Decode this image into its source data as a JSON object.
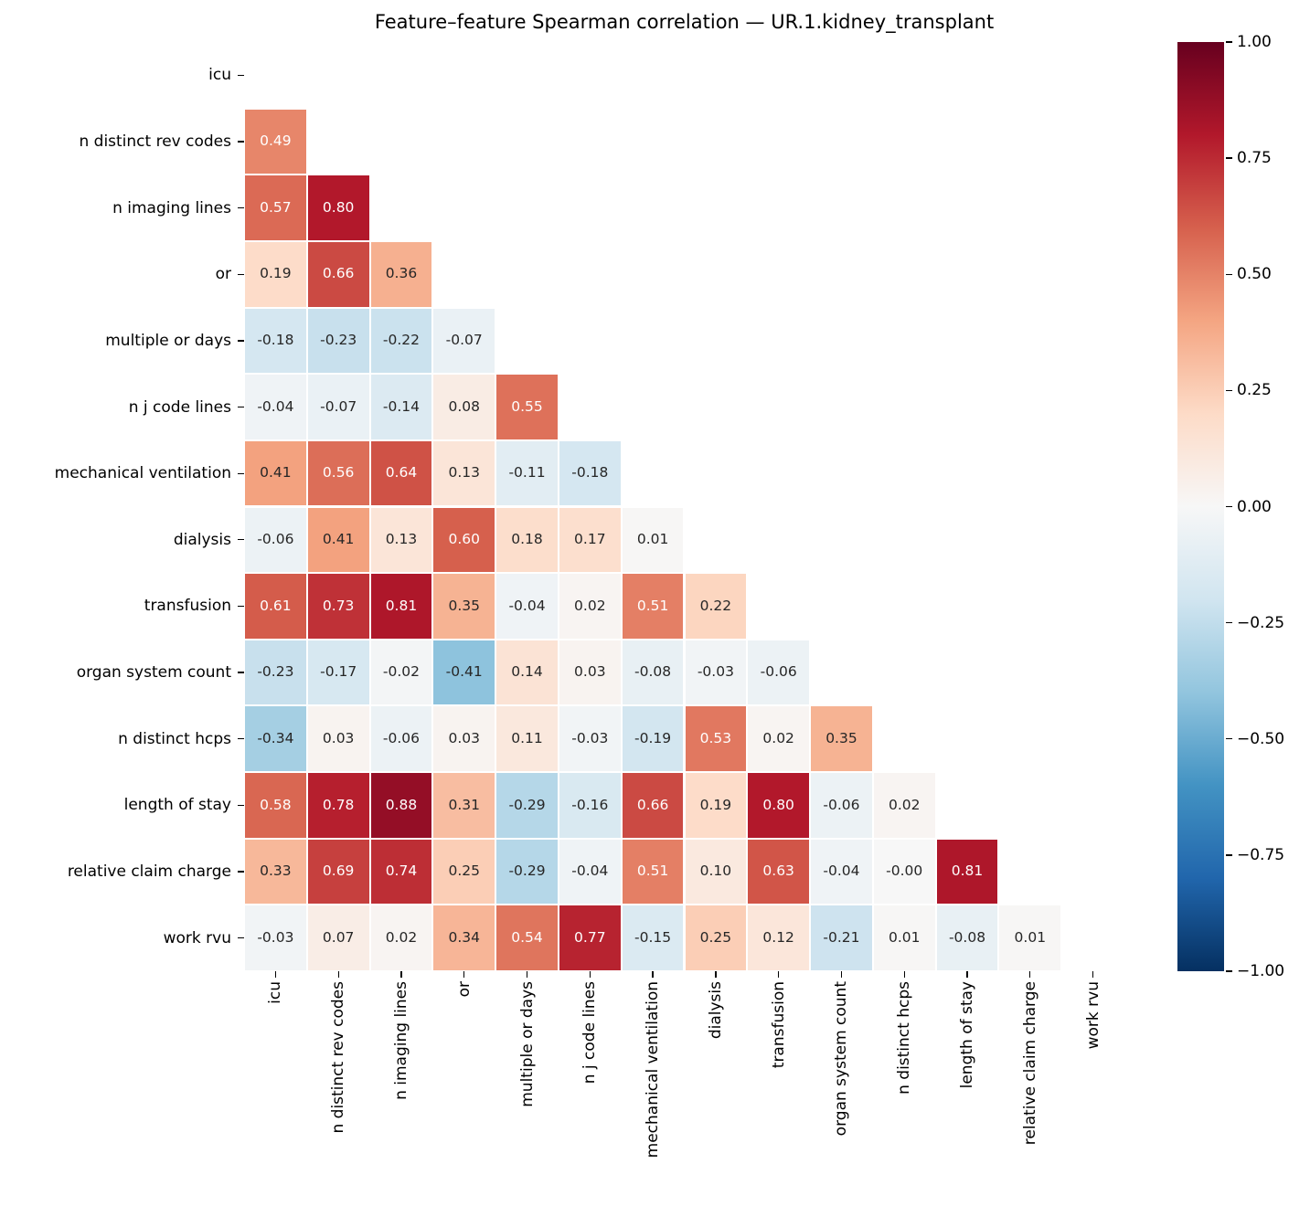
{
  "title": "Feature–feature Spearman correlation — UR.1.kidney_transplant",
  "chart_data": {
    "type": "heatmap",
    "subtype": "correlation-matrix-lower-triangle",
    "title": "Feature–feature Spearman correlation — UR.1.kidney_transplant",
    "categories": [
      "icu",
      "n distinct rev codes",
      "n imaging lines",
      "or",
      "multiple or days",
      "n j code lines",
      "mechanical ventilation",
      "dialysis",
      "transfusion",
      "organ system count",
      "n distinct hcps",
      "length of stay",
      "relative claim charge",
      "work rvu"
    ],
    "matrix_lower_triangle": [
      [],
      [
        "0.49"
      ],
      [
        "0.57",
        "0.80"
      ],
      [
        "0.19",
        "0.66",
        "0.36"
      ],
      [
        "-0.18",
        "-0.23",
        "-0.22",
        "-0.07"
      ],
      [
        "-0.04",
        "-0.07",
        "-0.14",
        "0.08",
        "0.55"
      ],
      [
        "0.41",
        "0.56",
        "0.64",
        "0.13",
        "-0.11",
        "-0.18"
      ],
      [
        "-0.06",
        "0.41",
        "0.13",
        "0.60",
        "0.18",
        "0.17",
        "0.01"
      ],
      [
        "0.61",
        "0.73",
        "0.81",
        "0.35",
        "-0.04",
        "0.02",
        "0.51",
        "0.22"
      ],
      [
        "-0.23",
        "-0.17",
        "-0.02",
        "-0.41",
        "0.14",
        "0.03",
        "-0.08",
        "-0.03",
        "-0.06"
      ],
      [
        "-0.34",
        "0.03",
        "-0.06",
        "0.03",
        "0.11",
        "-0.03",
        "-0.19",
        "0.53",
        "0.02",
        "0.35"
      ],
      [
        "0.58",
        "0.78",
        "0.88",
        "0.31",
        "-0.29",
        "-0.16",
        "0.66",
        "0.19",
        "0.80",
        "-0.06",
        "0.02"
      ],
      [
        "0.33",
        "0.69",
        "0.74",
        "0.25",
        "-0.29",
        "-0.04",
        "0.51",
        "0.10",
        "0.63",
        "-0.04",
        "-0.00",
        "0.81"
      ],
      [
        "-0.03",
        "0.07",
        "0.02",
        "0.34",
        "0.54",
        "0.77",
        "-0.15",
        "0.25",
        "0.12",
        "-0.21",
        "0.01",
        "-0.08",
        "0.01"
      ]
    ],
    "masked_region": "upper triangle including diagonal",
    "colormap": "RdBu_r",
    "vmin": -1,
    "vmax": 1,
    "colorbar_ticks": [
      "1.00",
      "0.75",
      "0.50",
      "0.25",
      "0.00",
      "−0.25",
      "−0.50",
      "−0.75",
      "−1.00"
    ],
    "colormap_stops_hex": [
      "#053061",
      "#2166ac",
      "#4393c3",
      "#92c5de",
      "#d1e5f0",
      "#f7f7f7",
      "#fddbc7",
      "#f4a582",
      "#d6604d",
      "#b2182b",
      "#67001f"
    ],
    "annotation_text_colors": {
      "dark": "#262626",
      "light": "#ffffff"
    },
    "legend_position": "right-colorbar",
    "grid": false
  }
}
